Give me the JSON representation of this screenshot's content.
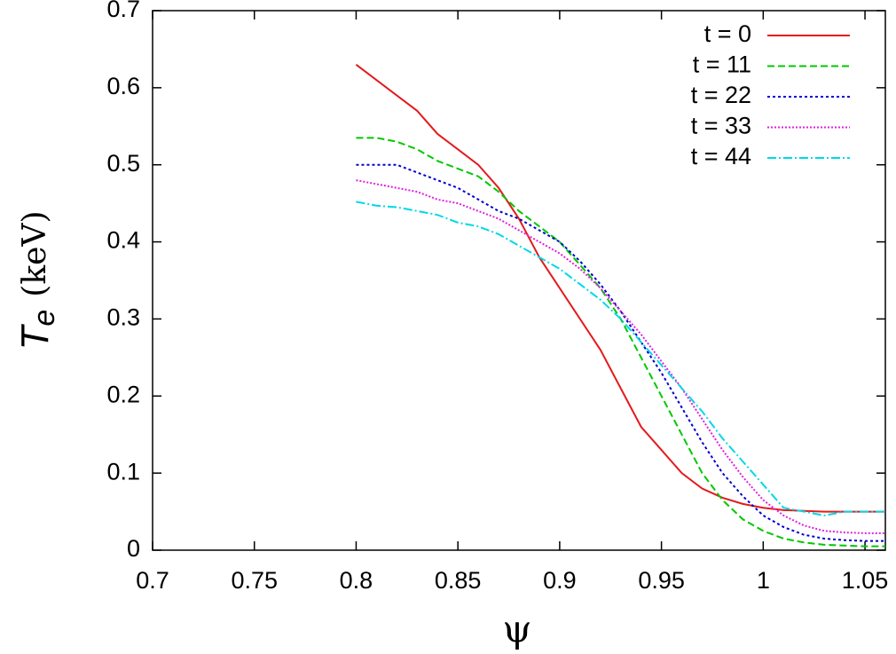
{
  "chart_data": {
    "type": "line",
    "xlabel": "ψ",
    "ylabel": {
      "symbol": "T",
      "subscript": "e",
      "unit": "(keV)"
    },
    "x": [
      0.8,
      0.81,
      0.82,
      0.83,
      0.84,
      0.85,
      0.86,
      0.87,
      0.88,
      0.89,
      0.9,
      0.91,
      0.92,
      0.93,
      0.94,
      0.95,
      0.96,
      0.97,
      0.98,
      0.99,
      1.0,
      1.01,
      1.02,
      1.03,
      1.04,
      1.05,
      1.06
    ],
    "series": [
      {
        "name": "t = 0",
        "color": "#e41a1c",
        "dash": "none",
        "values": [
          0.63,
          0.61,
          0.59,
          0.57,
          0.54,
          0.52,
          0.5,
          0.47,
          0.43,
          0.38,
          0.34,
          0.3,
          0.26,
          0.21,
          0.16,
          0.13,
          0.1,
          0.08,
          0.068,
          0.06,
          0.055,
          0.052,
          0.051,
          0.05,
          0.05,
          0.05,
          0.05
        ]
      },
      {
        "name": "t = 11",
        "color": "#00c800",
        "dash": "8 4",
        "values": [
          0.535,
          0.535,
          0.53,
          0.52,
          0.505,
          0.495,
          0.485,
          0.465,
          0.44,
          0.42,
          0.4,
          0.37,
          0.34,
          0.3,
          0.25,
          0.2,
          0.15,
          0.1,
          0.065,
          0.04,
          0.025,
          0.015,
          0.01,
          0.007,
          0.006,
          0.005,
          0.005
        ]
      },
      {
        "name": "t = 22",
        "color": "#0000cd",
        "dash": "3 3",
        "values": [
          0.5,
          0.5,
          0.5,
          0.49,
          0.48,
          0.47,
          0.455,
          0.44,
          0.43,
          0.415,
          0.4,
          0.375,
          0.345,
          0.31,
          0.27,
          0.23,
          0.185,
          0.14,
          0.1,
          0.07,
          0.045,
          0.03,
          0.02,
          0.015,
          0.013,
          0.012,
          0.012
        ]
      },
      {
        "name": "t = 33",
        "color": "#e020e0",
        "dash": "2 2",
        "values": [
          0.48,
          0.475,
          0.47,
          0.465,
          0.455,
          0.45,
          0.44,
          0.43,
          0.415,
          0.4,
          0.385,
          0.365,
          0.34,
          0.31,
          0.28,
          0.245,
          0.21,
          0.17,
          0.13,
          0.095,
          0.065,
          0.045,
          0.032,
          0.025,
          0.023,
          0.022,
          0.022
        ]
      },
      {
        "name": "t = 44",
        "color": "#00d8e8",
        "dash": "10 3 2 3",
        "values": [
          0.452,
          0.447,
          0.445,
          0.44,
          0.435,
          0.425,
          0.42,
          0.41,
          0.395,
          0.38,
          0.365,
          0.345,
          0.325,
          0.3,
          0.27,
          0.24,
          0.21,
          0.18,
          0.145,
          0.115,
          0.085,
          0.055,
          0.05,
          0.045,
          0.05,
          0.05,
          0.05
        ]
      }
    ],
    "xlim": [
      0.7,
      1.06
    ],
    "xticks": [
      0.7,
      0.75,
      0.8,
      0.85,
      0.9,
      0.95,
      1,
      1.05
    ],
    "ylim": [
      0,
      0.7
    ],
    "yticks": [
      0,
      0.1,
      0.2,
      0.3,
      0.4,
      0.5,
      0.6,
      0.7
    ],
    "grid": false,
    "legend": "top-right"
  }
}
